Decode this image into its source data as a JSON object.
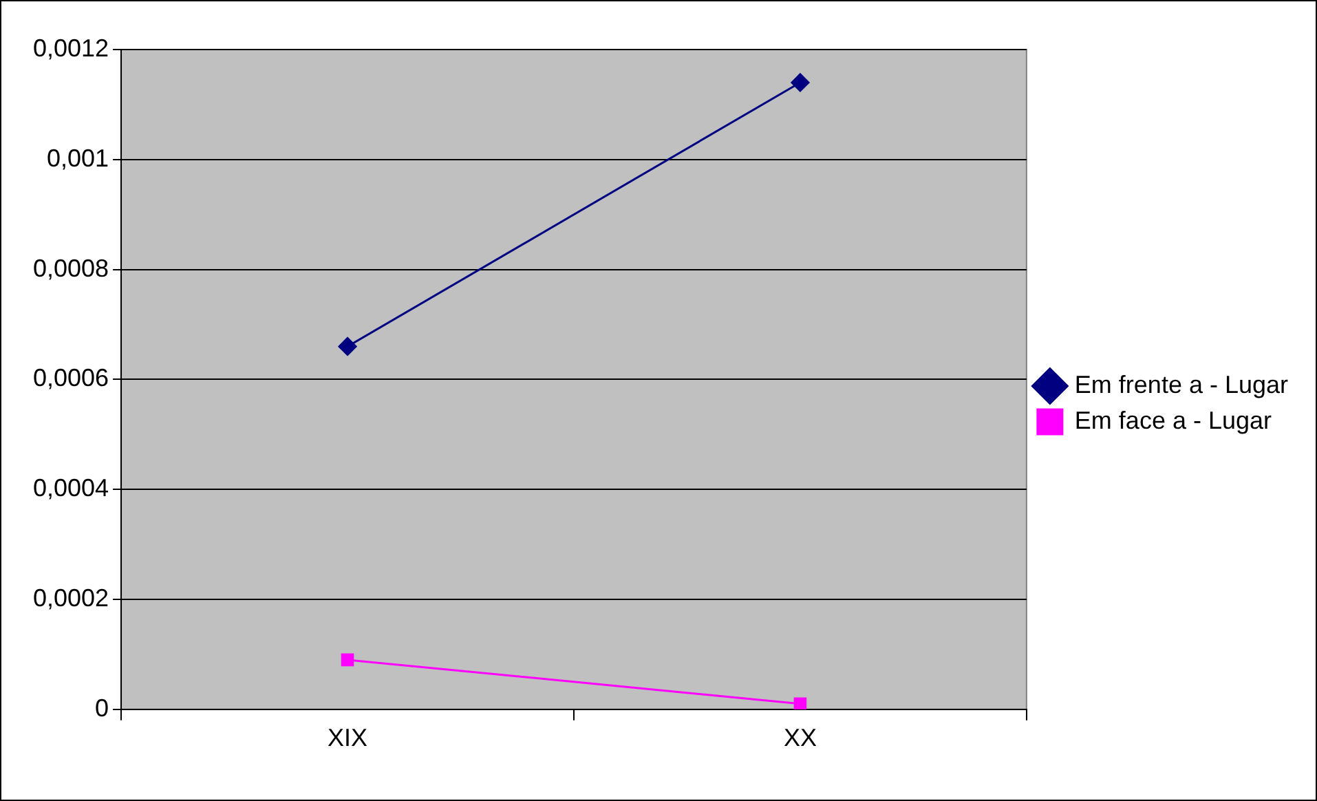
{
  "chart_data": {
    "type": "line",
    "categories": [
      "XIX",
      "XX"
    ],
    "series": [
      {
        "name": "Em frente a - Lugar",
        "color": "#000080",
        "values": [
          0.00066,
          0.00114
        ],
        "marker": "diamond"
      },
      {
        "name": "Em face a - Lugar",
        "color": "#ff00ff",
        "values": [
          9e-05,
          1e-05
        ],
        "marker": "square"
      }
    ],
    "ylim": [
      0,
      0.0012
    ],
    "yticks": [
      {
        "value": 0,
        "label": "0"
      },
      {
        "value": 0.0002,
        "label": "0,0002"
      },
      {
        "value": 0.0004,
        "label": "0,0004"
      },
      {
        "value": 0.0006,
        "label": "0,0006"
      },
      {
        "value": 0.0008,
        "label": "0,0008"
      },
      {
        "value": 0.001,
        "label": "0,001"
      },
      {
        "value": 0.0012,
        "label": "0,0012"
      }
    ],
    "grid": "y",
    "legend": "right",
    "line_style": "solid"
  }
}
